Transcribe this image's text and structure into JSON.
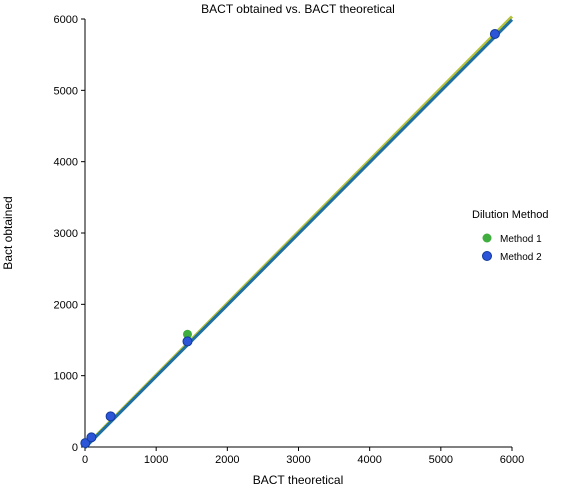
{
  "chart_data": {
    "type": "scatter",
    "title": "BACT obtained vs. BACT theoretical",
    "xlabel": "BACT theoretical",
    "ylabel": "Bact obtained",
    "xlim": [
      0,
      6000
    ],
    "ylim": [
      0,
      6000
    ],
    "xticks": [
      0,
      1000,
      2000,
      3000,
      4000,
      5000,
      6000
    ],
    "yticks": [
      0,
      1000,
      2000,
      3000,
      4000,
      5000,
      6000
    ],
    "grid": false,
    "legend": {
      "title": "Dilution Method",
      "position": "right"
    },
    "series": [
      {
        "name": "Method 1",
        "color": "#3fae3f",
        "points": [
          [
            5,
            60
          ],
          [
            90,
            140
          ],
          [
            360,
            430
          ],
          [
            1440,
            1580
          ],
          [
            5760,
            5790
          ]
        ],
        "fit": {
          "slope": 1.005,
          "intercept": 5,
          "color": "#b6c23a"
        }
      },
      {
        "name": "Method 2",
        "color": "#2c55d8",
        "points": [
          [
            5,
            55
          ],
          [
            90,
            135
          ],
          [
            360,
            430
          ],
          [
            1440,
            1480
          ],
          [
            5760,
            5790
          ]
        ],
        "fit": {
          "slope": 1.0,
          "intercept": -10,
          "color": "#1f6fa0"
        }
      }
    ]
  }
}
